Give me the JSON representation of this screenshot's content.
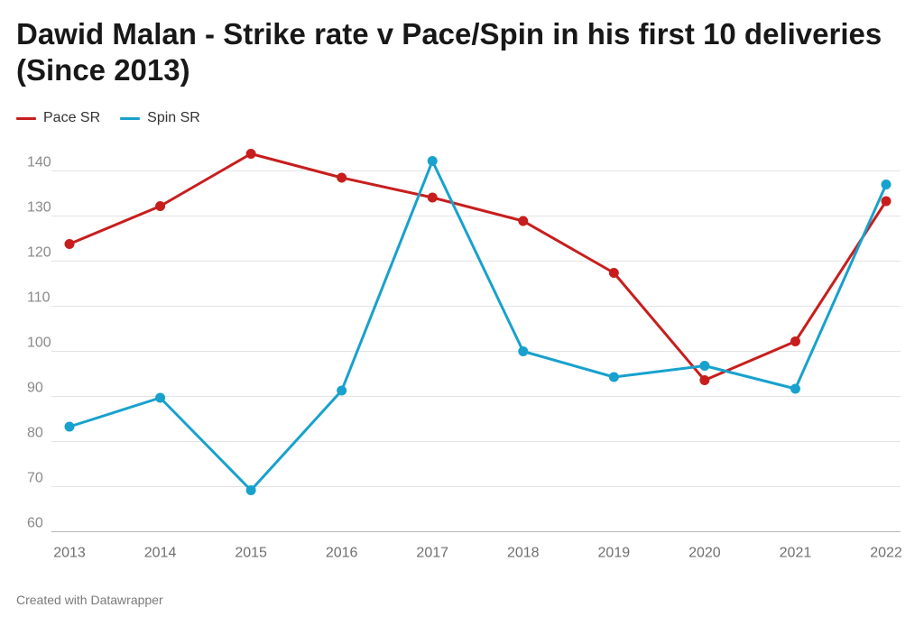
{
  "chart_data": {
    "type": "line",
    "title": "Dawid Malan - Strike rate v Pace/Spin in his first 10 deliveries (Since 2013)",
    "x": [
      "2013",
      "2014",
      "2015",
      "2016",
      "2017",
      "2018",
      "2019",
      "2020",
      "2021",
      "2022"
    ],
    "series": [
      {
        "name": "Pace SR",
        "color": "#c71e1d",
        "values": [
          123.8,
          132.2,
          143.8,
          138.5,
          134.1,
          128.9,
          117.4,
          93.6,
          102.2,
          133.3
        ]
      },
      {
        "name": "Spin SR",
        "color": "#18a1cd",
        "values": [
          83.3,
          89.7,
          69.2,
          91.3,
          142.2,
          100.0,
          94.3,
          96.8,
          91.7,
          137.0
        ]
      }
    ],
    "ylim": [
      60,
      140
    ],
    "yticks": [
      60,
      70,
      80,
      90,
      100,
      110,
      120,
      130,
      140
    ],
    "grid": true,
    "legend_position": "top-left"
  },
  "footer": {
    "credit": "Created with Datawrapper"
  }
}
